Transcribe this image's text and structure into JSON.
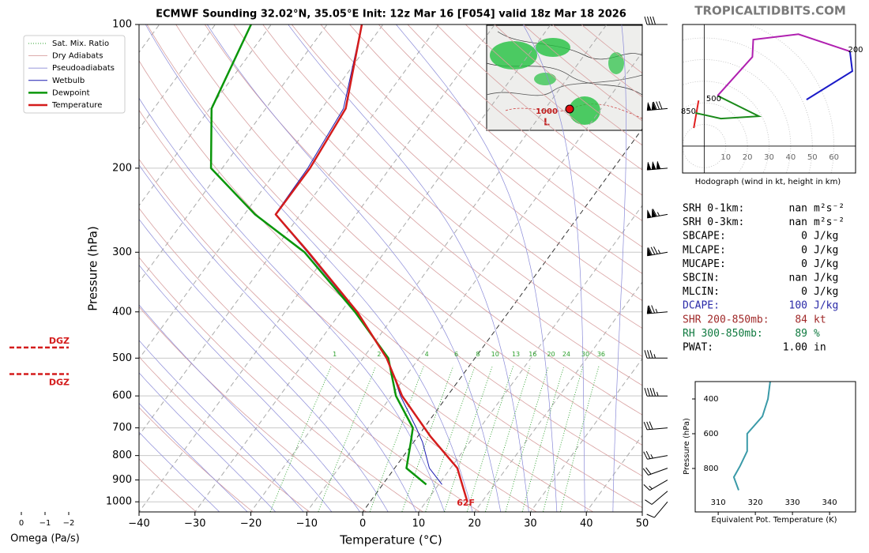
{
  "site": "TROPICALTIDBITS.COM",
  "chart_data": [
    {
      "type": "skewt",
      "title": "ECMWF Sounding 32.02°N, 35.05°E Init: 12z Mar 16 [F054] valid 18z Mar 18 2026",
      "xlabel": "Temperature (°C)",
      "ylabel": "Pressure (hPa)",
      "xlim": [
        -40,
        50
      ],
      "xticks": [
        {
          "value": -40,
          "label": "−40"
        },
        {
          "value": -30,
          "label": "−30"
        },
        {
          "value": -20,
          "label": "−20"
        },
        {
          "value": -10,
          "label": "−10"
        },
        0,
        10,
        20,
        30,
        40,
        50
      ],
      "ylim": [
        1050,
        100
      ],
      "yticks": [
        100,
        200,
        300,
        400,
        500,
        600,
        700,
        800,
        900,
        1000
      ],
      "log_y": true,
      "grid": true,
      "legend": "upper left",
      "reference_lines": [
        {
          "name": "Sat. Mix. Ratio",
          "color": "#2ca02c"
        },
        {
          "name": "Dry Adiabats",
          "color": "#d8a0a0"
        },
        {
          "name": "Pseudoadiabats",
          "color": "#8a8ad8"
        }
      ],
      "mixing_ratios": [
        1,
        2,
        4,
        6,
        8,
        10,
        13,
        16,
        20,
        24,
        30,
        36
      ],
      "series": [
        {
          "name": "Wetbulb",
          "color": "#1c1cb0",
          "linewidth": 1,
          "pressure": [
            920,
            850,
            750,
            700,
            600,
            500,
            400,
            300,
            250,
            200,
            150,
            100
          ],
          "values": [
            10.6,
            6.2,
            1.6,
            -1.4,
            -8.4,
            -15.6,
            -27.3,
            -43.8,
            -54.5,
            -54.7,
            -56.1,
            -63.8
          ]
        },
        {
          "name": "Dewpoint",
          "color": "#0a960a",
          "linewidth": 2.5,
          "pressure": [
            920,
            850,
            750,
            700,
            600,
            500,
            400,
            300,
            250,
            200,
            150,
            100
          ],
          "values": [
            7.8,
            2.1,
            -0.5,
            -2,
            -9.2,
            -15.5,
            -27.5,
            -44.3,
            -58.1,
            -72,
            -79.7,
            -83.6
          ]
        },
        {
          "name": "Temperature",
          "color": "#d41c1c",
          "linewidth": 2.5,
          "pressure": [
            1000,
            850,
            730,
            600,
            500,
            400,
            300,
            250,
            200,
            150,
            100
          ],
          "values": [
            17.4,
            11.2,
            2.3,
            -8.1,
            -15.8,
            -27.1,
            -43.6,
            -54.4,
            -54.3,
            -55.7,
            -63.8
          ]
        }
      ],
      "surface_label": "62F",
      "dgz": [
        {
          "label": "DGZ",
          "pressure": 475
        },
        {
          "label": "DGZ",
          "pressure": 540
        }
      ],
      "wind": {
        "pressure": [
          100,
          150,
          200,
          250,
          300,
          400,
          500,
          600,
          700,
          800,
          850,
          900,
          950,
          1000
        ],
        "speed": [
          40,
          130,
          150,
          115,
          85,
          75,
          35,
          45,
          30,
          25,
          20,
          15,
          10,
          10
        ],
        "direction": [
          270,
          265,
          265,
          260,
          260,
          265,
          270,
          270,
          265,
          260,
          250,
          240,
          230,
          220
        ]
      }
    },
    {
      "type": "omega",
      "xlabel": "Omega (Pa/s)",
      "xlim": [
        0.5,
        -2.5
      ],
      "xticks": [
        0,
        {
          "value": -1,
          "label": "−1"
        },
        {
          "value": -2,
          "label": "−2"
        }
      ]
    },
    {
      "type": "hodograph",
      "xlabel": "Hodograph (wind in kt, height in km)",
      "xlim": [
        -10,
        70
      ],
      "ylim": [
        -12.5,
        56.5
      ],
      "xticks": [
        10,
        20,
        30,
        40,
        50,
        60
      ],
      "series": [
        {
          "color": "#e02020",
          "x": [
            -4.8,
            -2.6
          ],
          "values": [
            8.4,
            21.2
          ]
        },
        {
          "color": "#1a8a1a",
          "x": [
            -4.0,
            7.7,
            25.3,
            6.2
          ],
          "values": [
            15.4,
            12.8,
            13.9,
            23.4
          ]
        },
        {
          "color": "#b020b0",
          "x": [
            6.2,
            22.3,
            22.7,
            43.6,
            67.4
          ],
          "values": [
            23.4,
            41.4,
            49.5,
            52.0,
            44.0
          ]
        },
        {
          "color": "#1a1ac8",
          "x": [
            67.4,
            68.5,
            47.3
          ],
          "values": [
            44.0,
            34.8,
            21.6
          ]
        }
      ],
      "annotations": [
        {
          "text": "850",
          "x": -7.3,
          "y": 16.1
        },
        {
          "text": "500",
          "x": 4.4,
          "y": 22.0
        },
        {
          "text": "200",
          "x": 70.0,
          "y": 44.7
        }
      ]
    },
    {
      "type": "profile",
      "xlabel": "Equivalent Pot. Temperature (K)",
      "ylabel": "Pressure (hPa)",
      "xlim": [
        303.8,
        347
      ],
      "ylim": [
        1050,
        300
      ],
      "xticks": [
        310,
        320,
        330,
        340
      ],
      "yticks": [
        400,
        600,
        800
      ],
      "series": [
        {
          "color": "#3a9aa8",
          "pressure": [
            300,
            400,
            500,
            600,
            700,
            785,
            850,
            925
          ],
          "values": [
            324.0,
            323.4,
            321.9,
            317.8,
            317.8,
            315.9,
            314.2,
            315.5
          ]
        }
      ]
    }
  ],
  "inset_map": {
    "labels": [
      "1000",
      "L"
    ]
  },
  "indices": [
    {
      "label": "SRH 0-1km:",
      "value": "nan",
      "unit": "m²s⁻²"
    },
    {
      "label": "SRH 0-3km:",
      "value": "nan",
      "unit": "m²s⁻²"
    },
    {
      "label": "SBCAPE:",
      "value": "0",
      "unit": "J/kg"
    },
    {
      "label": "MLCAPE:",
      "value": "0",
      "unit": "J/kg"
    },
    {
      "label": "MUCAPE:",
      "value": "0",
      "unit": "J/kg"
    },
    {
      "label": "SBCIN:",
      "value": "nan",
      "unit": "J/kg"
    },
    {
      "label": "MLCIN:",
      "value": "0",
      "unit": "J/kg"
    },
    {
      "label": "DCAPE:",
      "value": "100",
      "unit": "J/kg",
      "color": "#2a2aa8"
    },
    {
      "label": "SHR 200-850mb:",
      "value": "84",
      "unit": "kt",
      "color": "#a02a2a"
    },
    {
      "label": "RH 300-850mb:",
      "value": "89",
      "unit": "%",
      "color": "#107a40"
    },
    {
      "label": "PWAT:",
      "value": "1.00",
      "unit": "in"
    }
  ]
}
